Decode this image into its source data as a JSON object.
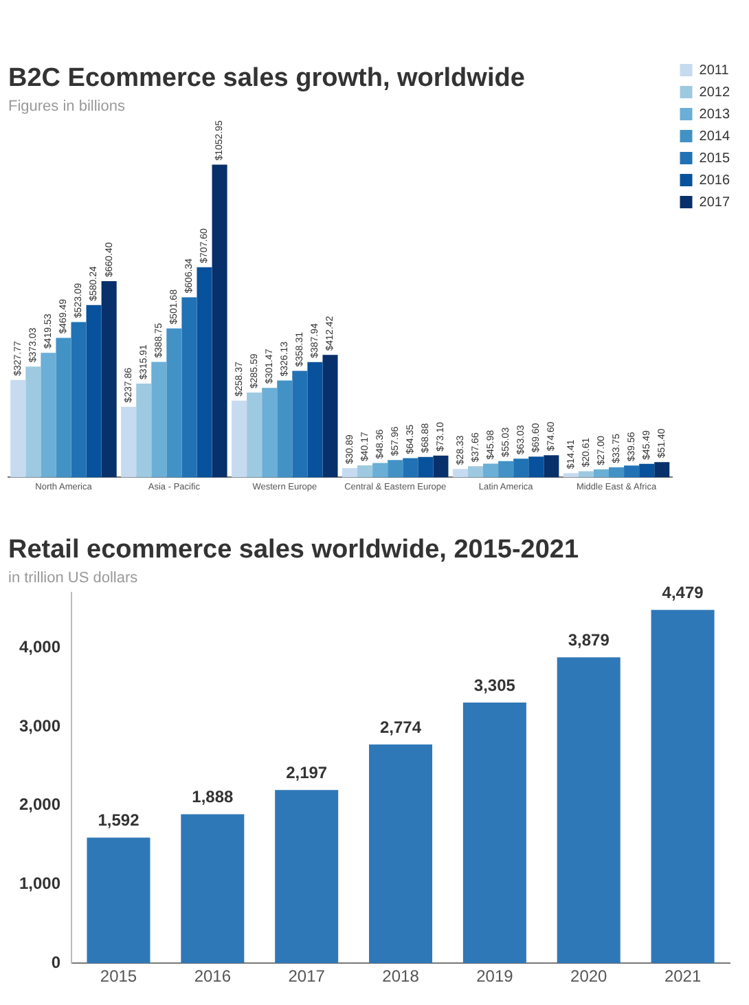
{
  "chart_data": [
    {
      "type": "bar",
      "title": "B2C Ecommerce sales growth, worldwide",
      "subtitle": "Figures in billions",
      "categories": [
        "North America",
        "Asia - Pacific",
        "Western Europe",
        "Central & Eastern Europe",
        "Latin America",
        "Middle East & Africa"
      ],
      "legend": "top right",
      "grid": false,
      "series": [
        {
          "name": "2011",
          "color": "#c6dbef",
          "values": [
            327.77,
            237.86,
            258.37,
            30.89,
            28.33,
            14.41
          ],
          "value_labels": [
            "$327.77",
            "$237.86",
            "$258.37",
            "$30.89",
            "$28.33",
            "$14.41"
          ]
        },
        {
          "name": "2012",
          "color": "#9ecae1",
          "values": [
            373.03,
            315.91,
            285.59,
            40.17,
            37.66,
            20.61
          ],
          "value_labels": [
            "$373.03",
            "$315.91",
            "$285.59",
            "$40.17",
            "$37.66",
            "$20.61"
          ]
        },
        {
          "name": "2013",
          "color": "#6baed6",
          "values": [
            419.53,
            388.75,
            301.47,
            48.36,
            45.98,
            27.0
          ],
          "value_labels": [
            "$419.53",
            "$388.75",
            "$301.47",
            "$48.36",
            "$45.98",
            "$27.00"
          ]
        },
        {
          "name": "2014",
          "color": "#4292c6",
          "values": [
            469.49,
            501.68,
            326.13,
            57.96,
            55.03,
            33.75
          ],
          "value_labels": [
            "$469.49",
            "$501.68",
            "$326.13",
            "$57.96",
            "$55.03",
            "$33.75"
          ]
        },
        {
          "name": "2015",
          "color": "#2171b5",
          "values": [
            523.09,
            606.34,
            358.31,
            64.35,
            63.03,
            39.56
          ],
          "value_labels": [
            "$523.09",
            "$606.34",
            "$358.31",
            "$64.35",
            "$63.03",
            "$39.56"
          ]
        },
        {
          "name": "2016",
          "color": "#08519c",
          "values": [
            580.24,
            707.6,
            387.94,
            68.88,
            69.6,
            45.49
          ],
          "value_labels": [
            "$580.24",
            "$707.60",
            "$387.94",
            "$68.88",
            "$69.60",
            "$45.49"
          ]
        },
        {
          "name": "2017",
          "color": "#08306b",
          "values": [
            660.4,
            1052.95,
            412.42,
            73.1,
            74.6,
            51.4
          ],
          "value_labels": [
            "$660.40",
            "$1052.95",
            "$412.42",
            "$73.10",
            "$74.60",
            "$51.40"
          ]
        }
      ]
    },
    {
      "type": "bar",
      "title": "Retail ecommerce sales worldwide, 2015-2021",
      "subtitle": "in trillion US dollars",
      "categories": [
        "2015",
        "2016",
        "2017",
        "2018",
        "2019",
        "2020",
        "2021"
      ],
      "grid": false,
      "series": [
        {
          "color": "#2f78b8",
          "values": [
            1592,
            1888,
            2197,
            2774,
            3305,
            3879,
            4479
          ],
          "value_labels": [
            "1,592",
            "1,888",
            "2,197",
            "2,774",
            "3,305",
            "3,879",
            "4,479"
          ]
        }
      ],
      "ylim": [
        0,
        4700
      ],
      "yticks": [
        0,
        {
          "value": 1000,
          "label": "1,000"
        },
        {
          "value": 2000,
          "label": "2,000"
        },
        {
          "value": 3000,
          "label": "3,000"
        },
        {
          "value": 4000,
          "label": "4,000"
        }
      ]
    }
  ]
}
